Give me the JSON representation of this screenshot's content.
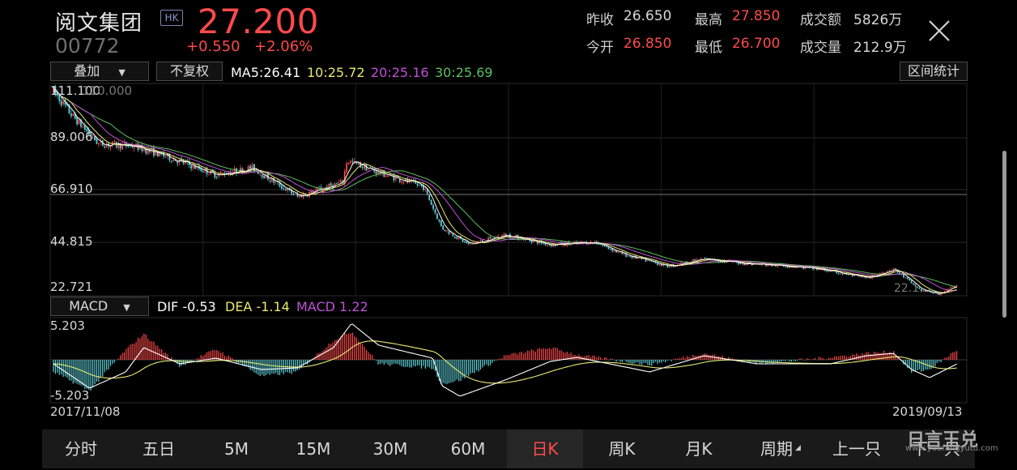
{
  "header": {
    "name": "阅文集团",
    "market_badge": "HK",
    "code": "00772",
    "price": "27.200",
    "change": "+0.550",
    "change_pct": "+2.06%",
    "quotes": [
      {
        "label": "昨收",
        "value": "26.650",
        "color": "#d8d8d8"
      },
      {
        "label": "最高",
        "value": "27.850",
        "color": "#ff4a4a"
      },
      {
        "label": "成交额",
        "value": "5826万",
        "color": "#d8d8d8"
      },
      {
        "label": "今开",
        "value": "26.850",
        "color": "#ff4a4a"
      },
      {
        "label": "最低",
        "value": "26.700",
        "color": "#ff4a4a"
      },
      {
        "label": "成交量",
        "value": "212.9万",
        "color": "#d8d8d8"
      }
    ]
  },
  "toolbar": {
    "overlay_label": "叠加",
    "adjust_label": "不复权",
    "ma5": "MA5:26.41",
    "ma10": "10:25.72",
    "ma20": "20:25.16",
    "ma30": "30:25.69",
    "range_stats_label": "区间统计"
  },
  "price_axis": {
    "ticks": [
      "111.100",
      "89.006",
      "66.910",
      "44.815",
      "22.721"
    ],
    "max_marker": "110.000",
    "min_marker": "22.1"
  },
  "macd": {
    "selector_label": "MACD",
    "dif": "DIF -0.53",
    "dea": "DEA -1.14",
    "macd": "MACD 1.22",
    "top_tick": "5.203",
    "bottom_tick": "-5.203"
  },
  "dates": {
    "start": "2017/11/08",
    "end": "2019/09/13"
  },
  "tabs": [
    {
      "label": "分时",
      "active": false
    },
    {
      "label": "五日",
      "active": false
    },
    {
      "label": "5M",
      "active": false
    },
    {
      "label": "15M",
      "active": false
    },
    {
      "label": "30M",
      "active": false
    },
    {
      "label": "60M",
      "active": false
    },
    {
      "label": "日K",
      "active": true
    },
    {
      "label": "周K",
      "active": false
    },
    {
      "label": "月K",
      "active": false
    },
    {
      "label": "周期",
      "active": false
    },
    {
      "label": "上一只",
      "active": false
    },
    {
      "label": "下一只",
      "active": false
    }
  ],
  "watermark": {
    "brand": "日言王兑",
    "url": "www.yuefangyutu.com"
  },
  "colors": {
    "up": "#ff4a4a",
    "down": "#5fd0d8",
    "ma5": "#ffffff",
    "ma10": "#e8e870",
    "ma20": "#c050d8",
    "ma30": "#5fbf5f",
    "dif": "#ffffff",
    "dea": "#e8e870",
    "macd": "#c050d8"
  },
  "chart_data": {
    "type": "candlestick",
    "x_range": [
      "2017/11/08",
      "2019/09/13"
    ],
    "ylim": [
      22.721,
      111.1
    ],
    "close_trend": [
      {
        "pos": 0.0,
        "close": 108
      },
      {
        "pos": 0.02,
        "close": 98
      },
      {
        "pos": 0.05,
        "close": 86
      },
      {
        "pos": 0.09,
        "close": 85
      },
      {
        "pos": 0.13,
        "close": 80
      },
      {
        "pos": 0.18,
        "close": 73
      },
      {
        "pos": 0.22,
        "close": 76
      },
      {
        "pos": 0.27,
        "close": 64
      },
      {
        "pos": 0.32,
        "close": 70
      },
      {
        "pos": 0.325,
        "close": 79
      },
      {
        "pos": 0.36,
        "close": 74
      },
      {
        "pos": 0.41,
        "close": 68
      },
      {
        "pos": 0.43,
        "close": 51
      },
      {
        "pos": 0.46,
        "close": 44
      },
      {
        "pos": 0.5,
        "close": 48
      },
      {
        "pos": 0.55,
        "close": 44
      },
      {
        "pos": 0.6,
        "close": 45
      },
      {
        "pos": 0.63,
        "close": 40
      },
      {
        "pos": 0.68,
        "close": 35
      },
      {
        "pos": 0.72,
        "close": 38
      },
      {
        "pos": 0.77,
        "close": 36
      },
      {
        "pos": 0.82,
        "close": 35
      },
      {
        "pos": 0.86,
        "close": 33
      },
      {
        "pos": 0.9,
        "close": 30
      },
      {
        "pos": 0.93,
        "close": 34
      },
      {
        "pos": 0.96,
        "close": 25
      },
      {
        "pos": 0.98,
        "close": 23.5
      },
      {
        "pos": 1.0,
        "close": 27.2
      }
    ],
    "macd_trend": [
      {
        "pos": 0.0,
        "dif": -0.5,
        "hist": -1.5
      },
      {
        "pos": 0.04,
        "dif": -3.5,
        "hist": -3.8
      },
      {
        "pos": 0.08,
        "dif": -1.5,
        "hist": 1.2
      },
      {
        "pos": 0.1,
        "dif": 1.5,
        "hist": 3.2
      },
      {
        "pos": 0.14,
        "dif": -0.5,
        "hist": -0.8
      },
      {
        "pos": 0.18,
        "dif": 0.2,
        "hist": 1.3
      },
      {
        "pos": 0.23,
        "dif": -1.2,
        "hist": -2.0
      },
      {
        "pos": 0.27,
        "dif": -1.0,
        "hist": -1.5
      },
      {
        "pos": 0.31,
        "dif": 1.5,
        "hist": 2.4
      },
      {
        "pos": 0.33,
        "dif": 4.5,
        "hist": 3.5
      },
      {
        "pos": 0.36,
        "dif": 1.8,
        "hist": -0.5
      },
      {
        "pos": 0.42,
        "dif": 0.2,
        "hist": -1.0
      },
      {
        "pos": 0.43,
        "dif": -3.2,
        "hist": -3.0
      },
      {
        "pos": 0.45,
        "dif": -4.5,
        "hist": -2.5
      },
      {
        "pos": 0.5,
        "dif": -2.5,
        "hist": 0.5
      },
      {
        "pos": 0.55,
        "dif": -0.2,
        "hist": 1.5
      },
      {
        "pos": 0.58,
        "dif": 0.3,
        "hist": 0.6
      },
      {
        "pos": 0.66,
        "dif": -1.5,
        "hist": -0.6
      },
      {
        "pos": 0.72,
        "dif": 0.5,
        "hist": 0.8
      },
      {
        "pos": 0.78,
        "dif": -0.5,
        "hist": -0.5
      },
      {
        "pos": 0.86,
        "dif": -0.5,
        "hist": 0.3
      },
      {
        "pos": 0.9,
        "dif": 0.5,
        "hist": 0.8
      },
      {
        "pos": 0.93,
        "dif": 0.8,
        "hist": 1.0
      },
      {
        "pos": 0.95,
        "dif": -1.2,
        "hist": -1.5
      },
      {
        "pos": 0.97,
        "dif": -2.2,
        "hist": -1.2
      },
      {
        "pos": 1.0,
        "dif": -0.53,
        "hist": 1.22
      }
    ]
  }
}
